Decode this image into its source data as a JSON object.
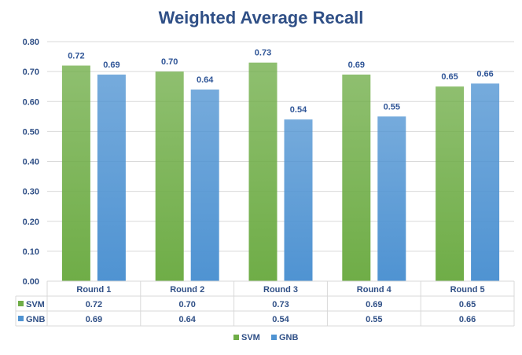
{
  "colors": {
    "svm": "#6FAD47",
    "gnb": "#4F93D2",
    "text": "#2F4F86",
    "grid": "#D9D9D9"
  },
  "chart_data": {
    "type": "bar",
    "title": "Weighted Average Recall",
    "categories": [
      "Round 1",
      "Round 2",
      "Round 3",
      "Round 4",
      "Round 5"
    ],
    "series": [
      {
        "name": "SVM",
        "values": [
          0.72,
          0.7,
          0.73,
          0.69,
          0.65
        ],
        "labels": [
          "0.72",
          "0.70",
          "0.73",
          "0.69",
          "0.65"
        ]
      },
      {
        "name": "GNB",
        "values": [
          0.69,
          0.64,
          0.54,
          0.55,
          0.66
        ],
        "labels": [
          "0.69",
          "0.64",
          "0.54",
          "0.55",
          "0.66"
        ]
      }
    ],
    "ylim": [
      0,
      0.8
    ],
    "yticks": [
      "0.00",
      "0.10",
      "0.20",
      "0.30",
      "0.40",
      "0.50",
      "0.60",
      "0.70",
      "0.80"
    ],
    "grid": true,
    "data_table": true,
    "legend": "bottom"
  }
}
